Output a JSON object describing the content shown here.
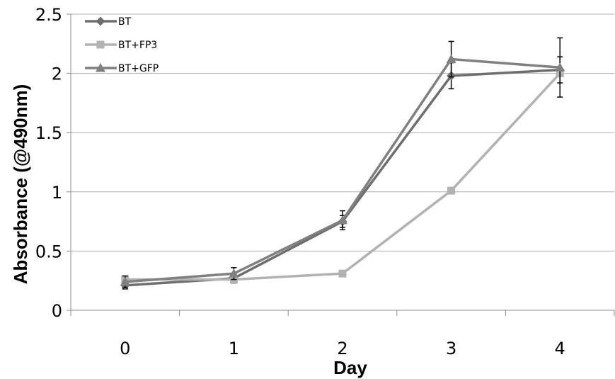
{
  "chart_data": {
    "type": "line",
    "title": "",
    "xlabel": "Day",
    "ylabel": "Absorbance (@490nm)",
    "x": [
      0,
      1,
      2,
      3,
      4
    ],
    "x_tick_labels": [
      "0",
      "1",
      "2",
      "3",
      "4"
    ],
    "ylim": [
      0,
      2.5
    ],
    "y_ticks": [
      0,
      0.5,
      1,
      1.5,
      2,
      2.5
    ],
    "y_tick_labels": [
      "0",
      "0.5",
      "1",
      "1.5",
      "2",
      "2.5"
    ],
    "grid": "horizontal",
    "legend_position": "top-left",
    "series": [
      {
        "name": "BT",
        "marker": "diamond",
        "color": "#6e6e6e",
        "values": [
          0.21,
          0.27,
          0.75,
          1.98,
          2.03
        ],
        "errors": [
          0.03,
          0.04,
          0.05,
          0.11,
          0.11
        ]
      },
      {
        "name": "BT+FP3",
        "marker": "square",
        "color": "#b2b2b2",
        "values": [
          0.26,
          0.26,
          0.31,
          1.01,
          2.0
        ],
        "errors": [
          0,
          0,
          0,
          0,
          0
        ]
      },
      {
        "name": "BT+GFP",
        "marker": "triangle",
        "color": "#808080",
        "values": [
          0.24,
          0.31,
          0.76,
          2.12,
          2.05
        ],
        "errors": [
          0.05,
          0.05,
          0.08,
          0.15,
          0.25
        ]
      }
    ]
  }
}
